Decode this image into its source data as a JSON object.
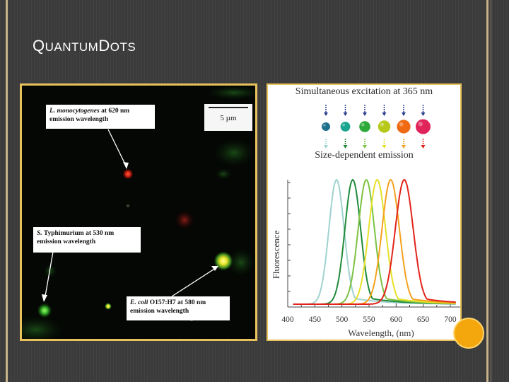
{
  "slide": {
    "title_first_letter": "Q",
    "title_rest_1": "uantum ",
    "title_second_letter": "D",
    "title_rest_2": "ots"
  },
  "micrograph": {
    "scale_label": "5 µm",
    "callouts": [
      {
        "species": "L. monocytogenes",
        "text": " at 620 nm",
        "line2": "emission wavelength"
      },
      {
        "species": "S.",
        "text": " Typhimurium at 530 nm",
        "line2": "emission wavelength"
      },
      {
        "species": "E. coli",
        "text": " O157:H7 at 580 nm",
        "line2": "emission wavelength"
      }
    ]
  },
  "figure": {
    "top_label": "Simultaneous excitation at 365 nm",
    "mid_label": "Size-dependent emission",
    "y_label": "Fluorescence",
    "x_label": "Wavelength, (nm)",
    "x_ticks": [
      "400",
      "450",
      "500",
      "550",
      "600",
      "650",
      "700"
    ],
    "dot_colors": [
      "#1f6f8f",
      "#1aa58e",
      "#2eaa3a",
      "#b7c91a",
      "#ef6a12",
      "#e0245a"
    ],
    "curve_colors": [
      "#9fd2cf",
      "#1f8a3a",
      "#7cc242",
      "#e6e02a",
      "#f4a11d",
      "#e2231a"
    ],
    "peaks_nm": [
      490,
      520,
      545,
      565,
      590,
      615
    ]
  }
}
